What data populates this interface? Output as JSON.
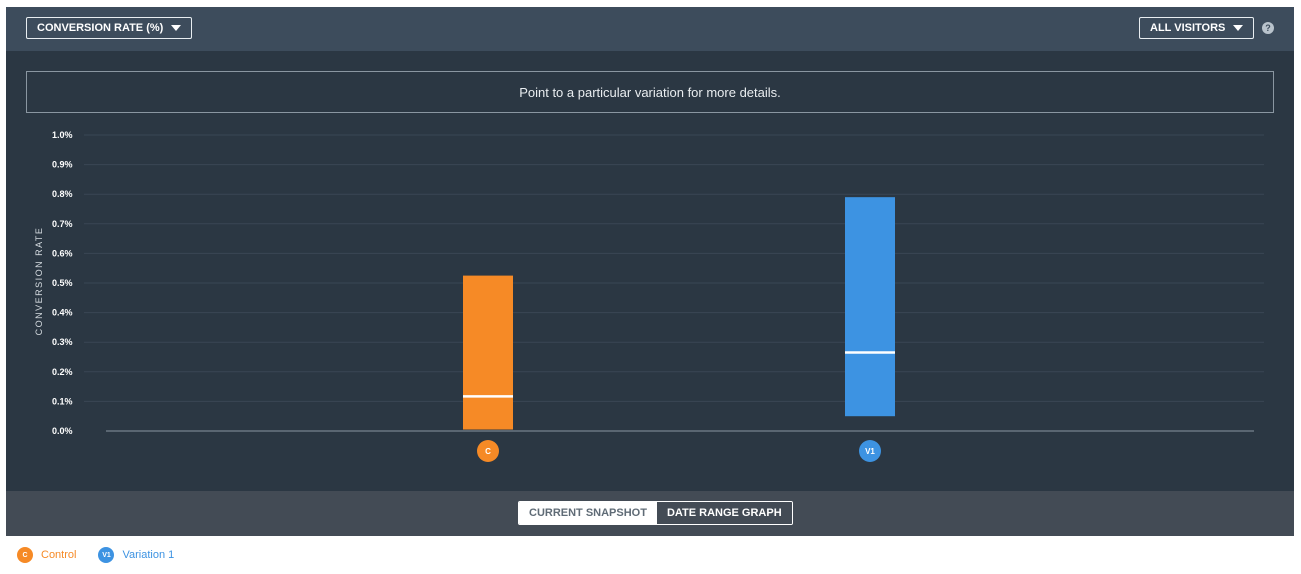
{
  "header": {
    "metric_dropdown": "CONVERSION RATE (%)",
    "segment_dropdown": "ALL VISITORS",
    "help_icon": "?"
  },
  "info_text": "Point to a particular variation for more details.",
  "colors": {
    "control": "#f68a26",
    "variation1": "#3d93e2",
    "panel_bg": "#2b3743",
    "median_line": "#ffffff"
  },
  "chart_data": {
    "type": "box-range",
    "ylabel": "CONVERSION RATE",
    "ylim": [
      0,
      1.0
    ],
    "y_ticks": [
      "0.0%",
      "0.1%",
      "0.2%",
      "0.3%",
      "0.4%",
      "0.5%",
      "0.6%",
      "0.7%",
      "0.8%",
      "0.9%",
      "1.0%"
    ],
    "grid": true,
    "series": [
      {
        "name": "Control",
        "badge": "C",
        "low": 0.005,
        "high": 0.525,
        "median": 0.117
      },
      {
        "name": "Variation 1",
        "badge": "V1",
        "low": 0.05,
        "high": 0.79,
        "median": 0.265
      }
    ]
  },
  "footer": {
    "toggle_current": "CURRENT SNAPSHOT",
    "toggle_range": "DATE RANGE GRAPH"
  },
  "legend": [
    {
      "badge": "C",
      "label": "Control"
    },
    {
      "badge": "V1",
      "label": "Variation 1"
    }
  ]
}
